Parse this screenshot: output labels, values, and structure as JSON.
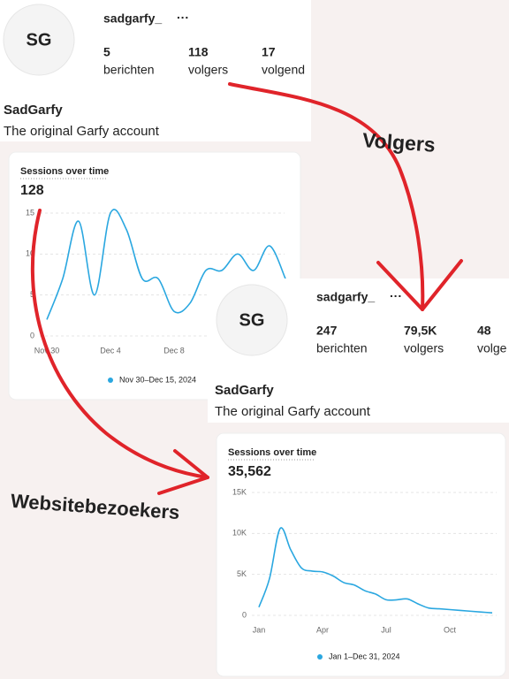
{
  "profiles": [
    {
      "avatar": "SG",
      "username": "sadgarfy_",
      "menu": "···",
      "stats": [
        {
          "value": "5",
          "label": "berichten"
        },
        {
          "value": "118",
          "label": "volgers"
        },
        {
          "value": "17",
          "label": "volgend"
        }
      ],
      "name": "SadGarfy",
      "bio": "The original Garfy account"
    },
    {
      "avatar": "SG",
      "username": "sadgarfy_",
      "menu": "···",
      "stats": [
        {
          "value": "247",
          "label": "berichten"
        },
        {
          "value": "79,5K",
          "label": "volgers"
        },
        {
          "value": "48",
          "label": "volge"
        }
      ],
      "name": "SadGarfy",
      "bio": "The original Garfy account"
    }
  ],
  "annotations": [
    "Volgers",
    "Websitebezoekers"
  ],
  "chart_data": [
    {
      "type": "line",
      "title": "Sessions over time",
      "total": 128,
      "categories": [
        "Nov 30",
        null,
        null,
        null,
        "Dec 4",
        null,
        null,
        null,
        "Dec 8",
        null,
        null,
        null,
        null,
        null,
        null,
        null
      ],
      "series": [
        {
          "name": "Nov 30–Dec 15, 2024",
          "color": "#2aa7e0",
          "values": [
            2,
            7,
            14,
            5,
            15,
            13,
            7,
            7,
            3,
            4,
            8,
            8,
            10,
            8,
            11,
            7
          ]
        }
      ],
      "ylim": [
        0,
        15
      ],
      "yticks": [
        0,
        5,
        10,
        15
      ],
      "grid": true
    },
    {
      "type": "line",
      "title": "Sessions over time",
      "total": {
        "value": 35562,
        "label": "35,562"
      },
      "categories": [
        "Jan",
        null,
        null,
        null,
        null,
        null,
        "Apr",
        null,
        null,
        null,
        null,
        null,
        "Jul",
        null,
        null,
        null,
        null,
        null,
        "Oct",
        null,
        null,
        null,
        null
      ],
      "series": [
        {
          "name": "Jan 1–Dec 31, 2024",
          "color": "#2aa7e0",
          "values": [
            1000,
            4500,
            10600,
            8000,
            5800,
            5400,
            5300,
            4800,
            4000,
            3700,
            3000,
            2600,
            1900,
            1900,
            2000,
            1400,
            900,
            800,
            700,
            600,
            500,
            400,
            300
          ]
        }
      ],
      "ylim": [
        0,
        15000
      ],
      "yticks": [
        0,
        {
          "value": 5000,
          "label": "5K"
        },
        {
          "value": 10000,
          "label": "10K"
        },
        {
          "value": 15000,
          "label": "15K"
        }
      ],
      "grid": true
    }
  ]
}
